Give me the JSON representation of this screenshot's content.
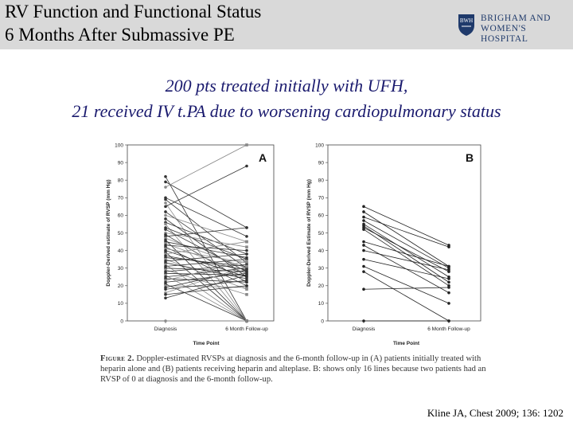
{
  "header": {
    "title_line1": "RV Function and Functional Status",
    "title_line2": "6 Months After Submassive PE",
    "logo_line1": "BRIGHAM AND",
    "logo_line2": "WOMEN'S HOSPITAL",
    "logo_icon": "bwh-shield-icon"
  },
  "subtitle": {
    "line1": "200 pts treated initially with UFH,",
    "line2": "21 received IV t.PA due to worsening cardiopulmonary status"
  },
  "chart_data": [
    {
      "type": "line",
      "panel_label": "A",
      "xlabel": "Time Point",
      "ylabel": "Doppler-Derived estimate of RVSP (mm Hg)",
      "categories": [
        "Diagnosis",
        "6 Month Follow-up"
      ],
      "ylim": [
        0,
        100
      ],
      "yticks": [
        0,
        10,
        20,
        30,
        40,
        50,
        60,
        70,
        80,
        90,
        100
      ],
      "series": [
        {
          "values": [
            82,
            0
          ]
        },
        {
          "values": [
            79,
            53
          ]
        },
        {
          "values": [
            76,
            100
          ]
        },
        {
          "values": [
            70,
            48
          ]
        },
        {
          "values": [
            69,
            33
          ]
        },
        {
          "values": [
            67,
            0
          ]
        },
        {
          "values": [
            65,
            88
          ]
        },
        {
          "values": [
            62,
            30
          ]
        },
        {
          "values": [
            60,
            45
          ]
        },
        {
          "values": [
            58,
            25
          ]
        },
        {
          "values": [
            56,
            38
          ]
        },
        {
          "values": [
            55,
            0
          ]
        },
        {
          "values": [
            53,
            35
          ]
        },
        {
          "values": [
            52,
            28
          ]
        },
        {
          "values": [
            50,
            42
          ]
        },
        {
          "values": [
            49,
            22
          ]
        },
        {
          "values": [
            48,
            53
          ]
        },
        {
          "values": [
            47,
            30
          ]
        },
        {
          "values": [
            46,
            0
          ]
        },
        {
          "values": [
            45,
            36
          ]
        },
        {
          "values": [
            44,
            27
          ]
        },
        {
          "values": [
            43,
            40
          ]
        },
        {
          "values": [
            42,
            20
          ]
        },
        {
          "values": [
            41,
            33
          ]
        },
        {
          "values": [
            40,
            25
          ]
        },
        {
          "values": [
            39,
            0
          ]
        },
        {
          "values": [
            38,
            45
          ]
        },
        {
          "values": [
            37,
            29
          ]
        },
        {
          "values": [
            36,
            31
          ]
        },
        {
          "values": [
            35,
            18
          ]
        },
        {
          "values": [
            34,
            38
          ]
        },
        {
          "values": [
            33,
            24
          ]
        },
        {
          "values": [
            32,
            0
          ]
        },
        {
          "values": [
            31,
            35
          ]
        },
        {
          "values": [
            30,
            28
          ]
        },
        {
          "values": [
            29,
            15
          ]
        },
        {
          "values": [
            28,
            32
          ]
        },
        {
          "values": [
            27,
            26
          ]
        },
        {
          "values": [
            26,
            0
          ]
        },
        {
          "values": [
            25,
            30
          ]
        },
        {
          "values": [
            24,
            22
          ]
        },
        {
          "values": [
            23,
            34
          ]
        },
        {
          "values": [
            22,
            27
          ]
        },
        {
          "values": [
            21,
            0
          ]
        },
        {
          "values": [
            20,
            19
          ]
        },
        {
          "values": [
            19,
            29
          ]
        },
        {
          "values": [
            18,
            23
          ]
        },
        {
          "values": [
            16,
            31
          ]
        },
        {
          "values": [
            15,
            20
          ]
        },
        {
          "values": [
            13,
            26
          ]
        },
        {
          "values": [
            0,
            0
          ]
        }
      ]
    },
    {
      "type": "line",
      "panel_label": "B",
      "xlabel": "Time Point",
      "ylabel": "Doppler-Derived Estimate of RVSP (mm Hg)",
      "categories": [
        "Diagnosis",
        "6 Month Follow-up"
      ],
      "ylim": [
        0,
        100
      ],
      "yticks": [
        0,
        10,
        20,
        30,
        40,
        50,
        60,
        70,
        80,
        90,
        100
      ],
      "series": [
        {
          "values": [
            65,
            43
          ]
        },
        {
          "values": [
            62,
            31
          ]
        },
        {
          "values": [
            59,
            42
          ]
        },
        {
          "values": [
            57,
            30
          ]
        },
        {
          "values": [
            55,
            25
          ]
        },
        {
          "values": [
            54,
            22
          ]
        },
        {
          "values": [
            53,
            28
          ]
        },
        {
          "values": [
            52,
            20
          ]
        },
        {
          "values": [
            45,
            31
          ]
        },
        {
          "values": [
            43,
            16
          ]
        },
        {
          "values": [
            40,
            29
          ]
        },
        {
          "values": [
            35,
            24
          ]
        },
        {
          "values": [
            31,
            10
          ]
        },
        {
          "values": [
            28,
            0
          ]
        },
        {
          "values": [
            18,
            19
          ]
        },
        {
          "values": [
            0,
            0
          ]
        }
      ]
    }
  ],
  "caption": {
    "figure_label": "Figure 2.",
    "text": " Doppler-estimated RVSPs at diagnosis and the 6-month follow-up in (A) patients initially treated with heparin alone and (B) patients receiving heparin and alteplase. B: shows only 16 lines because two patients had an RVSP of 0 at diagnosis and the 6-month follow-up."
  },
  "citation": "Kline JA, Chest 2009; 136: 1202"
}
